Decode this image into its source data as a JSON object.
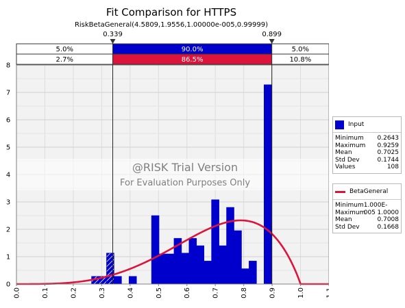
{
  "chart_data": {
    "type": "bar",
    "title": "Fit Comparison for HTTPS",
    "subtitle": "RiskBetaGeneral(4.5809,1.9556,1.00000e-005,0.99999)",
    "xlim": [
      0.0,
      1.1
    ],
    "ylim": [
      0,
      8
    ],
    "x_ticks": [
      "0.0",
      "0.1",
      "0.2",
      "0.3",
      "0.4",
      "0.5",
      "0.6",
      "0.7",
      "0.8",
      "0.9",
      "1.0",
      "1.1"
    ],
    "y_ticks": [
      "0",
      "1",
      "2",
      "3",
      "4",
      "5",
      "6",
      "7",
      "8"
    ],
    "grid": true,
    "delimiters": {
      "left": "0.339",
      "right": "0.899",
      "left_value": 0.339,
      "right_value": 0.899
    },
    "bands": {
      "input": [
        "5.0%",
        "90.0%",
        "5.0%"
      ],
      "fit": [
        "2.7%",
        "86.5%",
        "10.8%"
      ]
    },
    "histogram": {
      "name": "Input",
      "bin_width": 0.0264,
      "bins": [
        {
          "x": 0.2643,
          "h": 0.28
        },
        {
          "x": 0.2907,
          "h": 0.28
        },
        {
          "x": 0.3171,
          "h": 1.13
        },
        {
          "x": 0.3435,
          "h": 0.28
        },
        {
          "x": 0.3963,
          "h": 0.28
        },
        {
          "x": 0.4755,
          "h": 2.5
        },
        {
          "x": 0.5019,
          "h": 1.1
        },
        {
          "x": 0.5283,
          "h": 1.1
        },
        {
          "x": 0.5547,
          "h": 1.67
        },
        {
          "x": 0.5811,
          "h": 1.13
        },
        {
          "x": 0.6075,
          "h": 1.67
        },
        {
          "x": 0.6339,
          "h": 1.4
        },
        {
          "x": 0.6603,
          "h": 0.84
        },
        {
          "x": 0.6867,
          "h": 3.08
        },
        {
          "x": 0.7131,
          "h": 1.4
        },
        {
          "x": 0.7395,
          "h": 2.8
        },
        {
          "x": 0.7659,
          "h": 1.95
        },
        {
          "x": 0.7923,
          "h": 0.56
        },
        {
          "x": 0.8187,
          "h": 0.84
        },
        {
          "x": 0.8715,
          "h": 7.28
        }
      ]
    },
    "fit": {
      "name": "BetaGeneral",
      "alpha": 4.5809,
      "beta": 1.9556,
      "min": 1e-05,
      "max": 0.99999
    },
    "watermark": [
      "@RISK Trial Version",
      "For Evaluation Purposes Only"
    ],
    "legend_placement": "right",
    "legend": [
      {
        "name": "Input",
        "color": "#0000cc",
        "stats": [
          {
            "label": "Minimum",
            "value": "0.2643"
          },
          {
            "label": "Maximum",
            "value": "0.9259"
          },
          {
            "label": "Mean",
            "value": "0.7025"
          },
          {
            "label": "Std Dev",
            "value": "0.1744"
          },
          {
            "label": "Values",
            "value": "108"
          }
        ]
      },
      {
        "name": "BetaGeneral",
        "color": "#dc143c",
        "stats": [
          {
            "label": "Minimum",
            "value": "1.000E-005"
          },
          {
            "label": "Maximum",
            "value": "1.0000"
          },
          {
            "label": "Mean",
            "value": "0.7008"
          },
          {
            "label": "Std Dev",
            "value": "0.1668"
          }
        ]
      }
    ]
  }
}
